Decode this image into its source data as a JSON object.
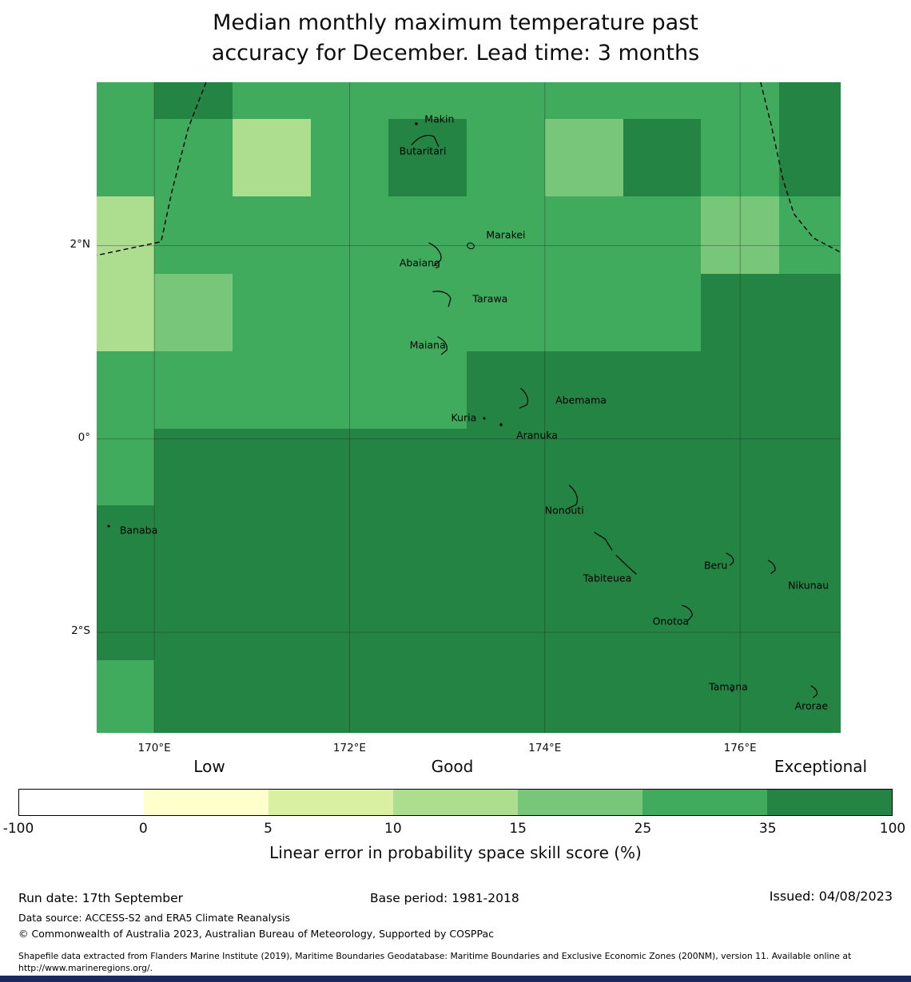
{
  "chart_data": {
    "type": "heatmap",
    "title": "Median monthly maximum temperature past\naccuracy for December. Lead time: 3 months",
    "colorbar": {
      "label": "Linear error in probability space skill score (%)",
      "tick_labels": [
        "-100",
        "0",
        "5",
        "10",
        "15",
        "25",
        "35",
        "100"
      ],
      "tick_values": [
        -100,
        0,
        5,
        10,
        15,
        25,
        35,
        100
      ],
      "segment_colors": [
        "#ffffff",
        "#ffffcc",
        "#d9f0a3",
        "#addd8e",
        "#78c679",
        "#41ab5d",
        "#238443"
      ],
      "qualitative_labels": [
        "Low",
        "Good",
        "Exceptional"
      ],
      "legend_position": "bottom"
    },
    "axes": {
      "lon_range": [
        169.41,
        177.03
      ],
      "lat_range": [
        -3.04,
        3.69
      ],
      "lon_ticks": [
        {
          "value": 170,
          "label": "170°E"
        },
        {
          "value": 172,
          "label": "172°E"
        },
        {
          "value": 174,
          "label": "174°E"
        },
        {
          "value": 176,
          "label": "176°E"
        }
      ],
      "lat_ticks": [
        {
          "value": 2,
          "label": "2°N"
        },
        {
          "value": 0,
          "label": "0°"
        },
        {
          "value": -2,
          "label": "2°S"
        }
      ],
      "grid": "on"
    },
    "grid": {
      "lon_edges": [
        169.41,
        170.0,
        170.8,
        171.6,
        172.4,
        173.2,
        174.0,
        174.8,
        175.6,
        176.4,
        177.03
      ],
      "lat_edges": [
        3.69,
        3.31,
        2.51,
        1.71,
        0.91,
        0.11,
        -0.69,
        -1.49,
        -2.29,
        -3.04
      ],
      "categories": {
        "P": "10-15",
        "L": "15-25",
        "M": "25-35",
        "D": "35-100"
      },
      "category_colors": {
        "P": "#addd8e",
        "L": "#78c679",
        "M": "#41ab5d",
        "D": "#238443"
      },
      "rows": [
        "MDMMMMMMMD",
        "MMPMDMLDMD",
        "PMMMMMMMLM",
        "PLMMMMMMDD",
        "MMMMMDDDDD",
        "MDDDDDDDDD",
        "DDDDDDDDDD",
        "DDDDDDDDDD",
        "MDDDDDDDDD"
      ]
    },
    "islands": [
      {
        "name": "Makin",
        "label": {
          "lon": 172.92,
          "lat": 3.31
        },
        "mark": {
          "lon": 172.68,
          "lat": 3.26,
          "kind": "dot",
          "size": 3.5,
          "angle": 0
        }
      },
      {
        "name": "Butaritari",
        "label": {
          "lon": 172.75,
          "lat": 2.98
        },
        "mark": {
          "lon": 172.8,
          "lat": 3.08,
          "kind": "atoll",
          "size": 30,
          "angle": -60
        }
      },
      {
        "name": "Marakei",
        "label": {
          "lon": 173.6,
          "lat": 2.11
        },
        "mark": {
          "lon": 173.24,
          "lat": 2.0,
          "kind": "ring",
          "size": 9,
          "angle": 20
        }
      },
      {
        "name": "Abaiang",
        "label": {
          "lon": 172.72,
          "lat": 1.82
        },
        "mark": {
          "lon": 172.88,
          "lat": 1.9,
          "kind": "atoll",
          "size": 26,
          "angle": 15
        }
      },
      {
        "name": "Tarawa",
        "label": {
          "lon": 173.44,
          "lat": 1.45
        },
        "mark": {
          "lon": 172.97,
          "lat": 1.46,
          "kind": "atoll",
          "size": 24,
          "angle": -20
        }
      },
      {
        "name": "Maiana",
        "label": {
          "lon": 172.8,
          "lat": 0.97
        },
        "mark": {
          "lon": 172.95,
          "lat": 0.96,
          "kind": "atoll",
          "size": 20,
          "angle": 15
        }
      },
      {
        "name": "Abemama",
        "label": {
          "lon": 174.37,
          "lat": 0.4
        },
        "mark": {
          "lon": 173.78,
          "lat": 0.4,
          "kind": "atoll",
          "size": 22,
          "angle": 30
        }
      },
      {
        "name": "Kuria",
        "label": {
          "lon": 173.17,
          "lat": 0.22
        },
        "mark": {
          "lon": 173.38,
          "lat": 0.21,
          "kind": "dot",
          "size": 3,
          "angle": 0
        }
      },
      {
        "name": "Aranuka",
        "label": {
          "lon": 173.92,
          "lat": 0.04
        },
        "mark": {
          "lon": 173.55,
          "lat": 0.15,
          "kind": "dot",
          "size": 3.5,
          "angle": 0
        }
      },
      {
        "name": "Nonouti",
        "label": {
          "lon": 174.2,
          "lat": -0.74
        },
        "mark": {
          "lon": 174.28,
          "lat": -0.62,
          "kind": "atoll",
          "size": 26,
          "angle": 30
        }
      },
      {
        "name": "Banaba",
        "label": {
          "lon": 169.84,
          "lat": -0.94
        },
        "mark": {
          "lon": 169.53,
          "lat": -0.9,
          "kind": "dot",
          "size": 3,
          "angle": 0
        }
      },
      {
        "name": "Tabiteuea",
        "label": {
          "lon": 174.64,
          "lat": -1.44
        },
        "mark": {
          "lon": 174.72,
          "lat": -1.18,
          "kind": "chain",
          "size": 52,
          "angle": 0
        }
      },
      {
        "name": "Beru",
        "label": {
          "lon": 175.75,
          "lat": -1.31
        },
        "mark": {
          "lon": 175.9,
          "lat": -1.25,
          "kind": "atoll",
          "size": 14,
          "angle": 10
        }
      },
      {
        "name": "Nikunau",
        "label": {
          "lon": 176.7,
          "lat": -1.51
        },
        "mark": {
          "lon": 176.33,
          "lat": -1.33,
          "kind": "atoll",
          "size": 15,
          "angle": 15
        }
      },
      {
        "name": "Onotoa",
        "label": {
          "lon": 175.29,
          "lat": -1.88
        },
        "mark": {
          "lon": 175.47,
          "lat": -1.8,
          "kind": "atoll",
          "size": 18,
          "angle": 5
        }
      },
      {
        "name": "Tamana",
        "label": {
          "lon": 175.88,
          "lat": -2.56
        },
        "mark": {
          "lon": 175.92,
          "lat": -2.6,
          "kind": "dot",
          "size": 3,
          "angle": 0
        }
      },
      {
        "name": "Arorae",
        "label": {
          "lon": 176.73,
          "lat": -2.76
        },
        "mark": {
          "lon": 176.76,
          "lat": -2.62,
          "kind": "atoll",
          "size": 13,
          "angle": 15
        }
      }
    ],
    "eez_boundaries": [
      [
        [
          170.53,
          3.69
        ],
        [
          170.35,
          3.22
        ],
        [
          170.18,
          2.56
        ],
        [
          170.07,
          2.04
        ],
        [
          169.41,
          1.9
        ]
      ],
      [
        [
          176.21,
          3.69
        ],
        [
          176.32,
          3.24
        ],
        [
          176.44,
          2.68
        ],
        [
          176.55,
          2.33
        ],
        [
          176.75,
          2.08
        ],
        [
          177.03,
          1.93
        ]
      ]
    ]
  },
  "footer": {
    "run_date": "Run date: 17th September",
    "base_period": "Base period: 1981-2018",
    "issued": "Issued: 04/08/2023",
    "data_source": "Data source: ACCESS-S2 and ERA5 Climate Reanalysis",
    "copyright": "© Commonwealth of Australia 2023, Australian Bureau of Meteorology, Supported by COSPPac",
    "shapefile_note": "Shapefile data extracted from Flanders Marine Institute (2019), Maritime Boundaries Geodatabase: Maritime Boundaries and Exclusive Economic Zones (200NM), version 11. Available online at http://www.marineregions.org/."
  }
}
